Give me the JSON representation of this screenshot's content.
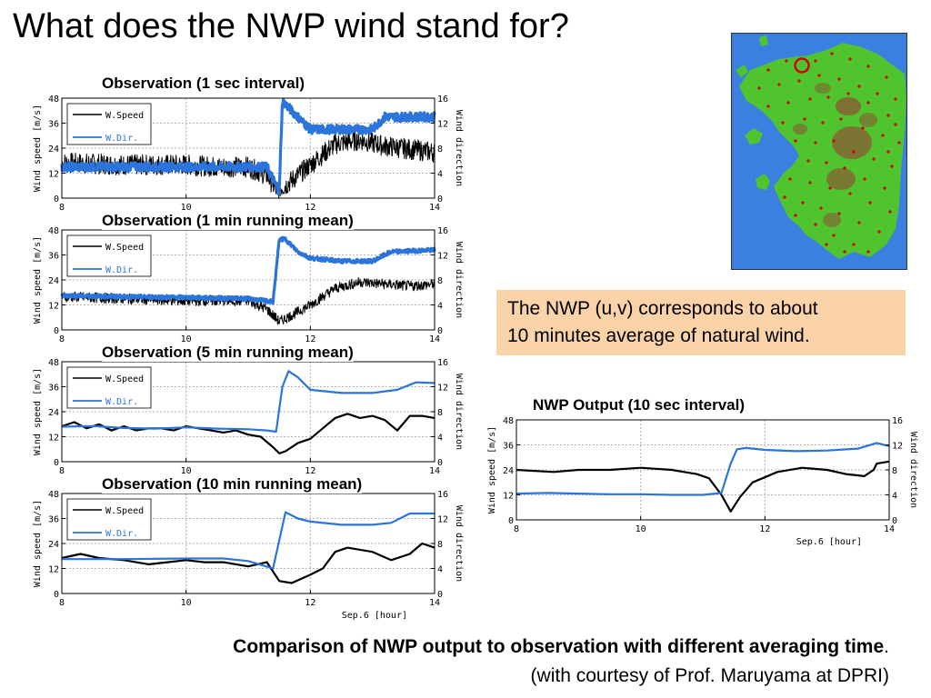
{
  "slide": {
    "title": "What does the NWP wind stand for?",
    "note_line1": "The NWP (u,v) corresponds to about",
    "note_line2": "10 minutes average of natural wind.",
    "caption_main": "Comparison of NWP output to observation with different averaging time",
    "caption_period": ".",
    "caption_sub": "(with courtesy of Prof. Maruyama at DPRI)"
  },
  "colors": {
    "speed": "#000000",
    "direction": "#2b74dc",
    "note_bg": "#fbd3a8",
    "sea": "#3b7fe0",
    "land": "#4fc42e",
    "mountain": "#8a5a35",
    "marker": "#d40000"
  },
  "chart_data": [
    {
      "type": "line",
      "title": "Observation (1 sec interval)",
      "x_ticks": [
        8,
        10,
        12,
        14
      ],
      "xlim": [
        8,
        14
      ],
      "ylabel": "Wind speed [m/s]",
      "ylim": [
        0,
        48
      ],
      "y_ticks": [
        0,
        12,
        24,
        36,
        48
      ],
      "y2label": "Wind direction",
      "y2lim": [
        0,
        16
      ],
      "y2_ticks": [
        0,
        4,
        8,
        12,
        16
      ],
      "xlabel": "",
      "series": [
        {
          "name": "W.Speed",
          "axis": "left",
          "noise": 5,
          "x": [
            8,
            9,
            10,
            10.5,
            11,
            11.3,
            11.45,
            11.6,
            12,
            12.4,
            12.8,
            13.2,
            14
          ],
          "y": [
            17,
            16,
            16,
            15,
            15,
            11,
            4,
            6,
            16,
            26,
            28,
            25,
            22
          ]
        },
        {
          "name": "W.Dir.",
          "axis": "right",
          "noise": 0.7,
          "x": [
            8,
            11.3,
            11.4,
            11.5,
            11.55,
            11.7,
            11.85,
            12,
            13,
            13.2,
            14
          ],
          "y": [
            5,
            5,
            3,
            1,
            15.5,
            14,
            12.5,
            11,
            11,
            13,
            13
          ]
        }
      ]
    },
    {
      "type": "line",
      "title": "Observation (1 min running mean)",
      "x_ticks": [
        8,
        10,
        12,
        14
      ],
      "xlim": [
        8,
        14
      ],
      "ylabel": "Wind speed [m/s]",
      "ylim": [
        0,
        48
      ],
      "y_ticks": [
        0,
        12,
        24,
        36,
        48
      ],
      "y2label": "Wind direction",
      "y2lim": [
        0,
        16
      ],
      "y2_ticks": [
        0,
        4,
        8,
        12,
        16
      ],
      "xlabel": "",
      "series": [
        {
          "name": "W.Speed",
          "axis": "left",
          "noise": 2.5,
          "x": [
            8,
            9,
            10,
            11,
            11.3,
            11.5,
            11.7,
            12,
            12.4,
            12.8,
            13.2,
            13.6,
            14
          ],
          "y": [
            16,
            15,
            14,
            14,
            10,
            4,
            7,
            12,
            20,
            23,
            22,
            21,
            22
          ]
        },
        {
          "name": "W.Dir.",
          "axis": "right",
          "noise": 0.3,
          "x": [
            8,
            9,
            10,
            11,
            11.4,
            11.5,
            11.6,
            11.8,
            12,
            12.5,
            13,
            13.3,
            14
          ],
          "y": [
            5.5,
            5.3,
            5.2,
            5,
            4.5,
            14.5,
            14.5,
            12.5,
            11.5,
            11,
            11,
            12.5,
            12.8
          ]
        }
      ]
    },
    {
      "type": "line",
      "title": "Observation (5 min running mean)",
      "x_ticks": [
        8,
        10,
        12,
        14
      ],
      "xlim": [
        8,
        14
      ],
      "ylabel": "Wind speed [m/s]",
      "ylim": [
        0,
        48
      ],
      "y_ticks": [
        0,
        12,
        24,
        36,
        48
      ],
      "y2label": "Wind direction",
      "y2lim": [
        0,
        16
      ],
      "y2_ticks": [
        0,
        4,
        8,
        12,
        16
      ],
      "xlabel": "",
      "series": [
        {
          "name": "W.Speed",
          "axis": "left",
          "noise": 0,
          "x": [
            8,
            8.2,
            8.4,
            8.6,
            8.8,
            9,
            9.2,
            9.4,
            9.6,
            9.8,
            10,
            10.2,
            10.4,
            10.6,
            10.8,
            11,
            11.2,
            11.4,
            11.5,
            11.6,
            11.8,
            12,
            12.2,
            12.4,
            12.6,
            12.8,
            13,
            13.2,
            13.4,
            13.6,
            13.8,
            14
          ],
          "y": [
            17,
            19,
            16,
            18,
            15,
            17,
            15,
            16,
            16,
            15,
            17,
            16,
            15,
            14,
            15,
            13,
            12,
            7,
            4,
            5,
            9,
            11,
            16,
            21,
            23,
            21,
            22,
            20,
            15,
            22,
            22,
            21
          ]
        },
        {
          "name": "W.Dir.",
          "axis": "right",
          "noise": 0,
          "x": [
            8,
            8.5,
            9,
            9.5,
            10,
            10.5,
            11,
            11.3,
            11.45,
            11.55,
            11.65,
            11.8,
            12,
            12.5,
            13,
            13.4,
            13.7,
            14
          ],
          "y": [
            5.6,
            5.7,
            5.4,
            5.3,
            5.5,
            5.3,
            5.2,
            5,
            4.8,
            12,
            14.5,
            13.5,
            11.5,
            11,
            11,
            11.5,
            12.7,
            12.6
          ]
        }
      ]
    },
    {
      "type": "line",
      "title": "Observation (10 min running mean)",
      "x_ticks": [
        8,
        10,
        12,
        14
      ],
      "xlim": [
        8,
        14
      ],
      "ylabel": "Wind speed [m/s]",
      "ylim": [
        0,
        48
      ],
      "y_ticks": [
        0,
        12,
        24,
        36,
        48
      ],
      "y2label": "Wind direction",
      "y2lim": [
        0,
        16
      ],
      "y2_ticks": [
        0,
        4,
        8,
        12,
        16
      ],
      "xlabel": "Sep.6 [hour]",
      "series": [
        {
          "name": "W.Speed",
          "axis": "left",
          "noise": 0,
          "x": [
            8,
            8.3,
            8.6,
            9,
            9.4,
            9.7,
            10,
            10.3,
            10.6,
            11,
            11.3,
            11.5,
            11.7,
            12,
            12.2,
            12.4,
            12.6,
            12.8,
            13,
            13.3,
            13.6,
            13.8,
            14
          ],
          "y": [
            17,
            19,
            17,
            16,
            14,
            15,
            16,
            15,
            15,
            13,
            15,
            6,
            5,
            9,
            12,
            20,
            22,
            21,
            20,
            16,
            19,
            24,
            22
          ]
        },
        {
          "name": "W.Dir.",
          "axis": "right",
          "noise": 0,
          "x": [
            8,
            9,
            10,
            10.6,
            11,
            11.4,
            11.6,
            11.8,
            12,
            12.5,
            13,
            13.3,
            13.6,
            14
          ],
          "y": [
            5.5,
            5.5,
            5.6,
            5.6,
            5.2,
            4,
            13,
            12,
            11.5,
            11,
            11,
            11.3,
            12.8,
            12.8
          ]
        }
      ]
    },
    {
      "type": "line",
      "title": "NWP Output (10 sec interval)",
      "x_ticks": [
        8,
        10,
        12,
        14
      ],
      "xlim": [
        8,
        14
      ],
      "ylabel": "Wind speed [m/s]",
      "ylim": [
        0,
        48
      ],
      "y_ticks": [
        0,
        12,
        24,
        36,
        48
      ],
      "y2label": "Wind direction",
      "y2lim": [
        0,
        16
      ],
      "y2_ticks": [
        0,
        4,
        8,
        12,
        16
      ],
      "xlabel": "Sep.6 [hour]",
      "series": [
        {
          "name": "",
          "axis": "left",
          "noise": 0,
          "x": [
            8,
            8.6,
            9,
            9.5,
            10,
            10.5,
            10.9,
            11.1,
            11.3,
            11.45,
            11.6,
            11.8,
            12.2,
            12.6,
            13,
            13.3,
            13.6,
            13.75,
            13.8,
            14
          ],
          "y": [
            24,
            23,
            24,
            24,
            25,
            24,
            22,
            20,
            12,
            4,
            11,
            18,
            23,
            25,
            24,
            22,
            21,
            24,
            27,
            28
          ]
        },
        {
          "name": "",
          "axis": "right",
          "noise": 0,
          "x": [
            8,
            8.5,
            9,
            9.5,
            10,
            10.5,
            11,
            11.3,
            11.45,
            11.55,
            11.7,
            12,
            12.5,
            13,
            13.5,
            13.8,
            14
          ],
          "y": [
            4.2,
            4.3,
            4.2,
            4.1,
            4.1,
            4.0,
            4.0,
            4.3,
            9,
            11.3,
            11.5,
            11.2,
            11,
            11.1,
            11.4,
            12.3,
            11.8
          ]
        }
      ]
    }
  ]
}
